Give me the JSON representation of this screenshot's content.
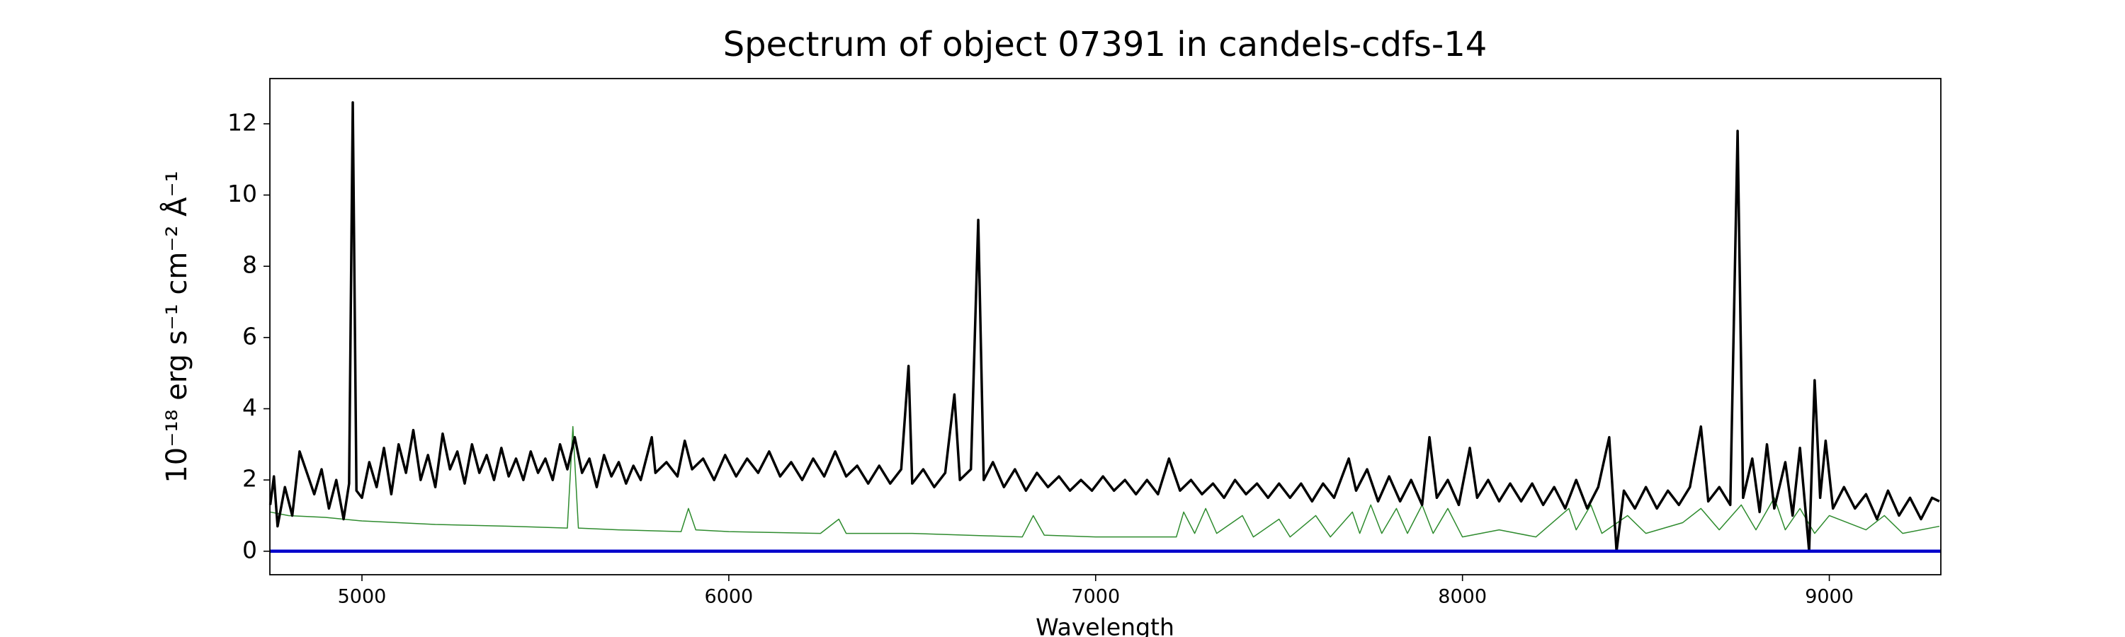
{
  "chart_data": {
    "type": "line",
    "title": "Spectrum of object 07391 in candels-cdfs-14",
    "xlabel": "Wavelength",
    "ylabel": "10⁻¹⁸ erg s⁻¹ cm⁻² Å⁻¹",
    "xlim": [
      4749,
      9304
    ],
    "ylim": [
      -0.66,
      13.27
    ],
    "xticks": [
      5000,
      6000,
      7000,
      8000,
      9000
    ],
    "yticks": [
      0,
      2,
      4,
      6,
      8,
      10,
      12
    ],
    "series": [
      {
        "color": "#2e8b2e",
        "width": 1.5,
        "x": [
          4750,
          4800,
          4900,
          5000,
          5200,
          5400,
          5560,
          5575,
          5590,
          5700,
          5870,
          5890,
          5910,
          6000,
          6250,
          6300,
          6320,
          6500,
          6800,
          6830,
          6860,
          7000,
          7220,
          7240,
          7270,
          7300,
          7330,
          7400,
          7430,
          7500,
          7530,
          7600,
          7640,
          7700,
          7720,
          7750,
          7780,
          7820,
          7850,
          7890,
          7920,
          7960,
          8000,
          8100,
          8200,
          8290,
          8310,
          8350,
          8380,
          8450,
          8500,
          8600,
          8650,
          8700,
          8760,
          8800,
          8850,
          8880,
          8920,
          8960,
          9000,
          9100,
          9150,
          9200,
          9300
        ],
        "values": [
          1.1,
          1.0,
          0.95,
          0.85,
          0.75,
          0.7,
          0.65,
          3.5,
          0.65,
          0.6,
          0.55,
          1.2,
          0.6,
          0.55,
          0.5,
          0.9,
          0.5,
          0.5,
          0.4,
          1.0,
          0.45,
          0.4,
          0.4,
          1.1,
          0.5,
          1.2,
          0.5,
          1.0,
          0.4,
          0.9,
          0.4,
          1.0,
          0.4,
          1.1,
          0.5,
          1.3,
          0.5,
          1.2,
          0.5,
          1.3,
          0.5,
          1.2,
          0.4,
          0.6,
          0.4,
          1.2,
          0.6,
          1.3,
          0.5,
          1.0,
          0.5,
          0.8,
          1.2,
          0.6,
          1.3,
          0.6,
          1.5,
          0.6,
          1.2,
          0.5,
          1.0,
          0.6,
          1.0,
          0.5,
          0.7
        ]
      },
      {
        "color": "#000000",
        "width": 3.5,
        "x": [
          4750,
          4760,
          4770,
          4790,
          4810,
          4830,
          4850,
          4870,
          4890,
          4910,
          4930,
          4950,
          4965,
          4975,
          4985,
          5000,
          5020,
          5040,
          5060,
          5080,
          5100,
          5120,
          5140,
          5160,
          5180,
          5200,
          5220,
          5240,
          5260,
          5280,
          5300,
          5320,
          5340,
          5360,
          5380,
          5400,
          5420,
          5440,
          5460,
          5480,
          5500,
          5520,
          5540,
          5560,
          5580,
          5600,
          5620,
          5640,
          5660,
          5680,
          5700,
          5720,
          5740,
          5760,
          5790,
          5800,
          5830,
          5860,
          5880,
          5900,
          5930,
          5960,
          5990,
          6020,
          6050,
          6080,
          6110,
          6140,
          6170,
          6200,
          6230,
          6260,
          6290,
          6320,
          6350,
          6380,
          6410,
          6440,
          6470,
          6490,
          6500,
          6530,
          6560,
          6590,
          6615,
          6630,
          6660,
          6680,
          6695,
          6720,
          6750,
          6780,
          6810,
          6840,
          6870,
          6900,
          6930,
          6960,
          6990,
          7020,
          7050,
          7080,
          7110,
          7140,
          7170,
          7200,
          7230,
          7260,
          7290,
          7320,
          7350,
          7380,
          7410,
          7440,
          7470,
          7500,
          7530,
          7560,
          7590,
          7620,
          7650,
          7690,
          7710,
          7740,
          7770,
          7800,
          7830,
          7860,
          7890,
          7910,
          7930,
          7960,
          7990,
          8020,
          8040,
          8070,
          8100,
          8130,
          8160,
          8190,
          8220,
          8250,
          8280,
          8310,
          8340,
          8370,
          8400,
          8420,
          8440,
          8470,
          8500,
          8530,
          8560,
          8590,
          8620,
          8650,
          8670,
          8700,
          8730,
          8750,
          8765,
          8790,
          8810,
          8830,
          8850,
          8880,
          8900,
          8920,
          8945,
          8960,
          8975,
          8990,
          9010,
          9040,
          9070,
          9100,
          9130,
          9160,
          9190,
          9220,
          9250,
          9280,
          9300
        ],
        "values": [
          1.3,
          2.1,
          0.7,
          1.8,
          1.0,
          2.8,
          2.2,
          1.6,
          2.3,
          1.2,
          2.0,
          0.9,
          1.9,
          12.6,
          1.7,
          1.5,
          2.5,
          1.8,
          2.9,
          1.6,
          3.0,
          2.2,
          3.4,
          2.0,
          2.7,
          1.8,
          3.3,
          2.3,
          2.8,
          1.9,
          3.0,
          2.2,
          2.7,
          2.0,
          2.9,
          2.1,
          2.6,
          2.0,
          2.8,
          2.2,
          2.6,
          2.0,
          3.0,
          2.3,
          3.2,
          2.2,
          2.6,
          1.8,
          2.7,
          2.1,
          2.5,
          1.9,
          2.4,
          2.0,
          3.2,
          2.2,
          2.5,
          2.1,
          3.1,
          2.3,
          2.6,
          2.0,
          2.7,
          2.1,
          2.6,
          2.2,
          2.8,
          2.1,
          2.5,
          2.0,
          2.6,
          2.1,
          2.8,
          2.1,
          2.4,
          1.9,
          2.4,
          1.9,
          2.3,
          5.2,
          1.9,
          2.3,
          1.8,
          2.2,
          4.4,
          2.0,
          2.3,
          9.3,
          2.0,
          2.5,
          1.8,
          2.3,
          1.7,
          2.2,
          1.8,
          2.1,
          1.7,
          2.0,
          1.7,
          2.1,
          1.7,
          2.0,
          1.6,
          2.0,
          1.6,
          2.6,
          1.7,
          2.0,
          1.6,
          1.9,
          1.5,
          2.0,
          1.6,
          1.9,
          1.5,
          1.9,
          1.5,
          1.9,
          1.4,
          1.9,
          1.5,
          2.6,
          1.7,
          2.3,
          1.4,
          2.1,
          1.4,
          2.0,
          1.3,
          3.2,
          1.5,
          2.0,
          1.3,
          2.9,
          1.5,
          2.0,
          1.4,
          1.9,
          1.4,
          1.9,
          1.3,
          1.8,
          1.2,
          2.0,
          1.2,
          1.8,
          3.2,
          0.0,
          1.7,
          1.2,
          1.8,
          1.2,
          1.7,
          1.3,
          1.8,
          3.5,
          1.4,
          1.8,
          1.3,
          11.8,
          1.5,
          2.6,
          1.1,
          3.0,
          1.2,
          2.5,
          1.0,
          2.9,
          0.0,
          4.8,
          1.5,
          3.1,
          1.2,
          1.8,
          1.2,
          1.6,
          0.9,
          1.7,
          1.0,
          1.5,
          0.9,
          1.5,
          1.4
        ]
      },
      {
        "color": "#0000cc",
        "width": 4.5,
        "x": [
          4749,
          9304
        ],
        "values": [
          0,
          0
        ]
      }
    ]
  }
}
